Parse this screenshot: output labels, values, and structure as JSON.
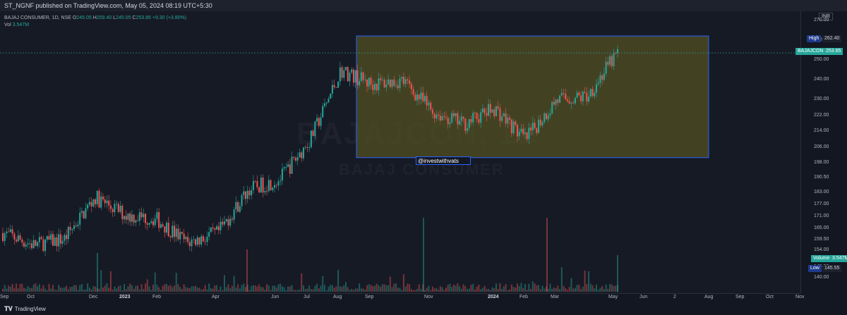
{
  "header": {
    "published_text": "ST_NGNF published on TradingView.com, May 05, 2024 08:19 UTC+5:30"
  },
  "legend": {
    "symbol": "BAJAJ CONSUMER, 1D, NSE",
    "open_label": "O",
    "open": "245.05",
    "high_label": "H",
    "high": "259.40",
    "low_label": "L",
    "low": "245.05",
    "close_label": "C",
    "close": "253.85",
    "change": "+9.30 (+3.80%)",
    "vol_label": "Vol",
    "vol": "3.547M"
  },
  "price_axis": {
    "currency": "INR",
    "ticks": [
      "270.00",
      "260.00",
      "250.00",
      "240.00",
      "230.00",
      "222.00",
      "214.00",
      "206.00",
      "198.00",
      "190.50",
      "183.00",
      "177.00",
      "171.00",
      "165.00",
      "159.50",
      "154.00",
      "145.50",
      "140.00"
    ]
  },
  "tags": {
    "high_label": "High",
    "high_value": "262.40",
    "symbol_label": "BAJAJCON",
    "symbol_value": "253.85",
    "volume_label": "Volume",
    "volume_value": "3.547M",
    "low_label": "Low",
    "low_value": "145.55"
  },
  "time_axis": {
    "labels": [
      "Sep",
      "Oct",
      "Dec",
      "2023",
      "Feb",
      "Apr",
      "Jun",
      "Jul",
      "Aug",
      "Sep",
      "Nov",
      "2024",
      "Feb",
      "Mar",
      "May",
      "Jun",
      "2",
      "Aug",
      "Sep",
      "Oct",
      "Nov"
    ]
  },
  "annotation": {
    "handle": "@investwithvats"
  },
  "watermark": {
    "line1": "BAJAJCON, 1D",
    "line2": "BAJAJ CONSUMER"
  },
  "footer": {
    "brand": "TradingView"
  },
  "colors": {
    "up": "#26a69a",
    "down": "#ef5350",
    "zone_fill": "#4a4a23",
    "zone_border": "#2962ff"
  },
  "chart_data": {
    "type": "candlestick",
    "symbol": "BAJAJCON",
    "timeframe": "1D",
    "ylim": [
      138,
      272
    ],
    "closes_approx": [
      {
        "x": "Sep 2022",
        "y": 163
      },
      {
        "x": "Oct 2022",
        "y": 157
      },
      {
        "x": "Nov 2022",
        "y": 160
      },
      {
        "x": "Dec 2022",
        "y": 181
      },
      {
        "x": "Jan 2023",
        "y": 172
      },
      {
        "x": "Feb 2023",
        "y": 170
      },
      {
        "x": "Mar 2023",
        "y": 158
      },
      {
        "x": "Apr 2023",
        "y": 163
      },
      {
        "x": "May 2023",
        "y": 185
      },
      {
        "x": "Jun 2023",
        "y": 190
      },
      {
        "x": "Jul 2023",
        "y": 210
      },
      {
        "x": "Aug 2023",
        "y": 245
      },
      {
        "x": "Sep 2023",
        "y": 238
      },
      {
        "x": "Oct 2023",
        "y": 240
      },
      {
        "x": "Nov 2023",
        "y": 224
      },
      {
        "x": "Dec 2023",
        "y": 218
      },
      {
        "x": "Jan 2024",
        "y": 226
      },
      {
        "x": "Feb 2024",
        "y": 210
      },
      {
        "x": "Mar 2024",
        "y": 230
      },
      {
        "x": "Apr 2024",
        "y": 232
      },
      {
        "x": "May 2024",
        "y": 253.85
      }
    ],
    "zone": {
      "price_top": 262.4,
      "price_bottom": 201,
      "start": "Aug 2023",
      "end": "Jul 2024"
    }
  }
}
